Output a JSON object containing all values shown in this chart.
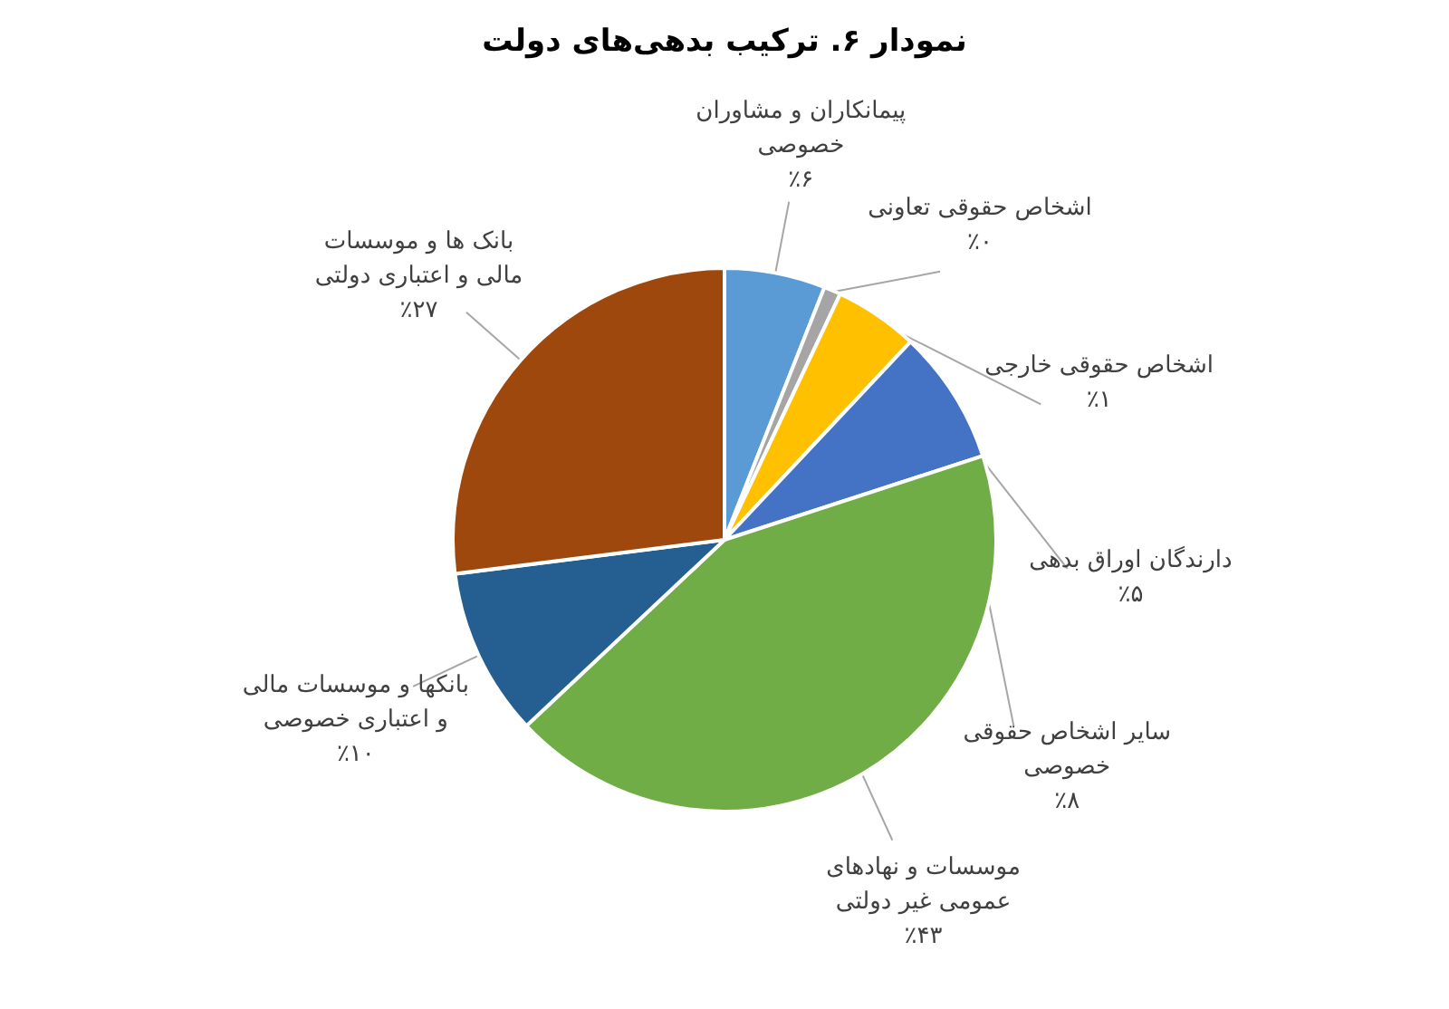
{
  "chart_data": {
    "type": "pie",
    "title": "نمودار ۶. ترکیب بدهی‌های دولت",
    "categories": [
      "پیمانکاران و مشاوران خصوصی",
      "اشخاص حقوقی تعاونی",
      "اشخاص حقوقی خارجی",
      "دارندگان اوراق بدهی",
      "سایر اشخاص حقوقی خصوصی",
      "موسسات و نهادهای عمومی غیر دولتی",
      "بانکها و موسسات مالی و اعتباری خصوصی",
      "بانک ها و موسسات مالی و اعتباری دولتی"
    ],
    "values": [
      6,
      0,
      1,
      5,
      8,
      43,
      10,
      27
    ],
    "value_labels": [
      "٪۶",
      "٪۰",
      "٪۱",
      "٪۵",
      "٪۸",
      "٪۴۳",
      "٪۱۰",
      "٪۲۷"
    ],
    "colors": [
      "#5b9bd5",
      "#7f7f7f",
      "#a5a5a5",
      "#ffc000",
      "#4472c4",
      "#70ad47",
      "#255e91",
      "#9e480e"
    ],
    "legend": false
  }
}
